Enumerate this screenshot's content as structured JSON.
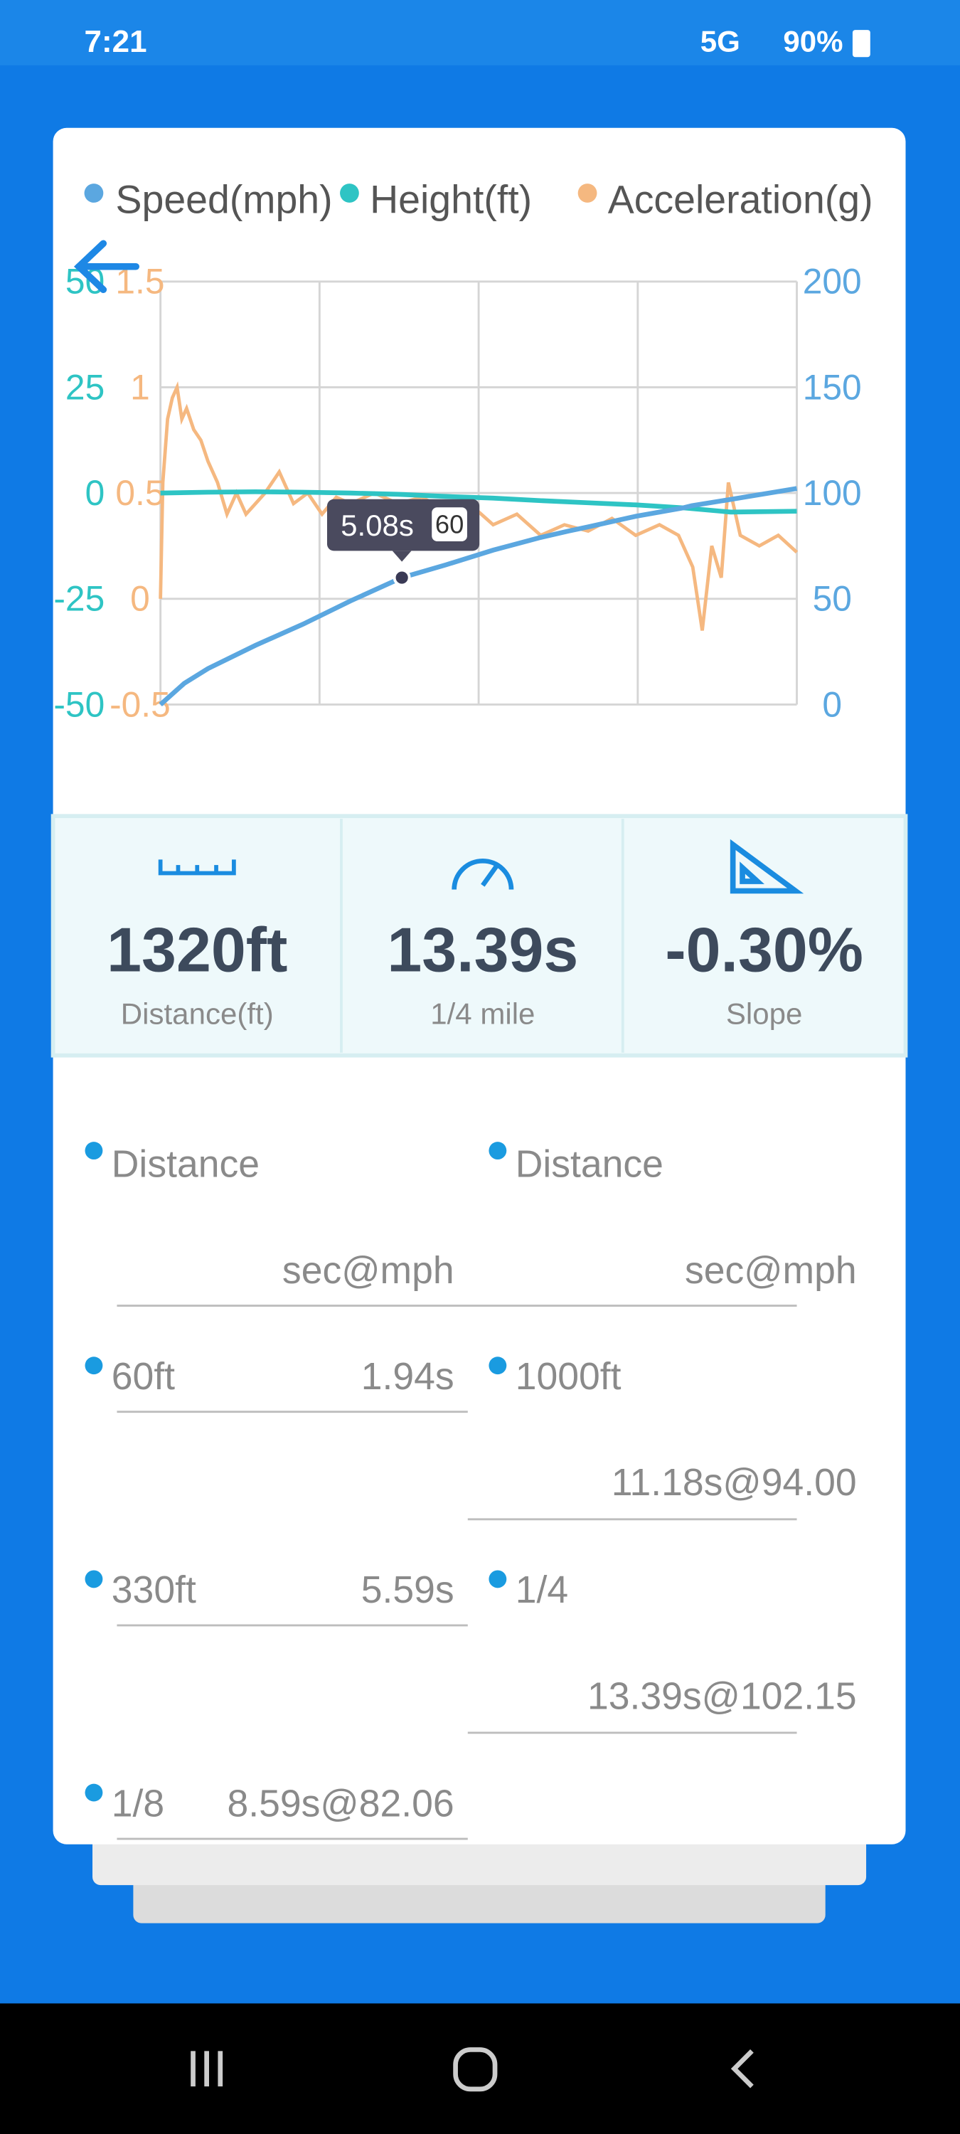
{
  "status_bar": {
    "time": "7:21",
    "network": "5G",
    "battery": "90%"
  },
  "chart_data": {
    "type": "line",
    "xlim": [
      0,
      13.39
    ],
    "ylim": [
      -50,
      50
    ],
    "yticks": [
      -50,
      -25,
      0,
      25,
      50
    ],
    "y2lim": [
      0,
      200
    ],
    "y2ticks": [
      0,
      50,
      100,
      150,
      200
    ],
    "y3lim": [
      -0.5,
      1.5
    ],
    "y3ticks": [
      -0.5,
      0,
      0.5,
      1,
      1.5
    ],
    "grid": true,
    "series": [
      {
        "name": "Speed(mph)",
        "color": "#5ba7e0",
        "axis": "y2",
        "x": [
          0,
          0.5,
          1,
          2,
          3,
          4,
          5.08,
          6,
          7,
          8,
          8.59,
          9,
          10,
          11,
          11.18,
          12,
          13.39
        ],
        "values": [
          0,
          10,
          17,
          28,
          38,
          49,
          60,
          66,
          73,
          79,
          82.06,
          84,
          89,
          93,
          94,
          97,
          102.15
        ]
      },
      {
        "name": "Height(ft)",
        "color": "#2ec4c4",
        "axis": "y",
        "x": [
          0,
          1,
          2,
          3,
          4,
          5,
          6,
          7,
          8,
          9,
          10,
          11,
          12,
          13.39
        ],
        "values": [
          0,
          0.2,
          0.3,
          0.2,
          0,
          -0.3,
          -0.8,
          -1.2,
          -1.8,
          -2.3,
          -2.8,
          -3.5,
          -4.5,
          -4.3
        ]
      },
      {
        "name": "Acceleration(g)",
        "color": "#f5b880",
        "axis": "y3",
        "x": [
          0,
          0.05,
          0.15,
          0.25,
          0.35,
          0.45,
          0.55,
          0.7,
          0.85,
          1.0,
          1.2,
          1.4,
          1.6,
          1.8,
          2.0,
          2.2,
          2.5,
          2.8,
          3.1,
          3.4,
          3.7,
          4.0,
          4.5,
          5.0,
          5.5,
          6.0,
          6.5,
          7.0,
          7.5,
          8.0,
          8.5,
          9.0,
          9.5,
          10.0,
          10.5,
          10.9,
          11.2,
          11.4,
          11.6,
          11.8,
          11.95,
          12.2,
          12.6,
          13.0,
          13.39
        ],
        "values": [
          0.0,
          0.55,
          0.85,
          0.95,
          1.0,
          0.85,
          0.9,
          0.8,
          0.75,
          0.65,
          0.55,
          0.4,
          0.5,
          0.4,
          0.45,
          0.5,
          0.6,
          0.45,
          0.5,
          0.4,
          0.48,
          0.45,
          0.5,
          0.45,
          0.48,
          0.42,
          0.45,
          0.35,
          0.4,
          0.3,
          0.35,
          0.32,
          0.38,
          0.3,
          0.35,
          0.3,
          0.15,
          -0.15,
          0.25,
          0.1,
          0.55,
          0.3,
          0.25,
          0.3,
          0.22
        ]
      }
    ],
    "tooltip": {
      "x": 5.08,
      "x_label": "5.08s",
      "value": 60
    }
  },
  "stats": [
    {
      "value": "1320ft",
      "label": "Distance(ft)"
    },
    {
      "value": "13.39s",
      "label": "1/4 mile"
    },
    {
      "value": "-0.30%",
      "label": "Slope"
    }
  ],
  "splits": {
    "headers": [
      {
        "name": "Distance",
        "unit": "sec@mph"
      },
      {
        "name": "Distance",
        "unit": "sec@mph"
      }
    ],
    "left": [
      {
        "name": "60ft",
        "time": "1.94s"
      },
      {
        "name": "330ft",
        "time": "5.59s"
      },
      {
        "name": "1/8",
        "time": "8.59s@82.06"
      }
    ],
    "right": [
      {
        "name": "1000ft",
        "time": "11.18s@94.00"
      },
      {
        "name": "1/4",
        "time": "13.39s@102.15"
      }
    ]
  }
}
